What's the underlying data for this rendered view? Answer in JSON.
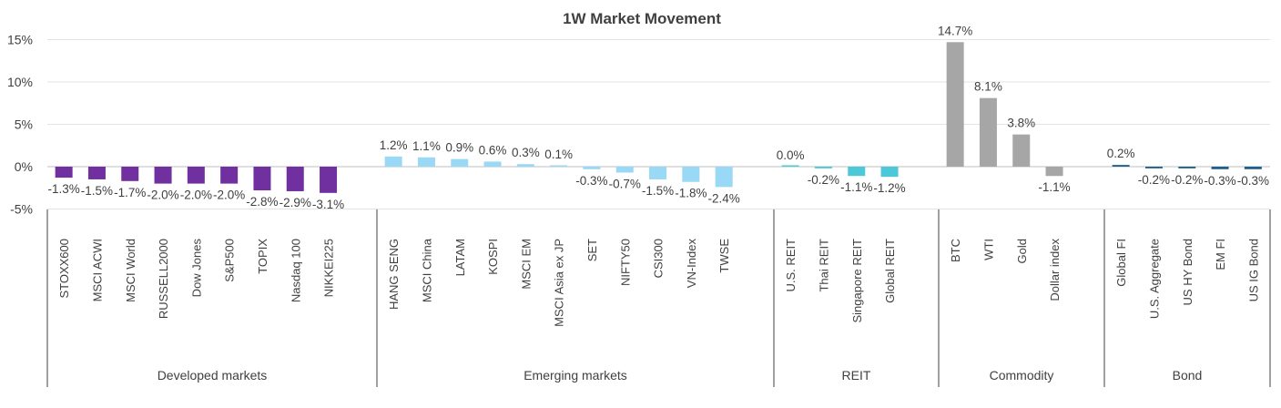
{
  "chart_data": {
    "type": "bar",
    "title": "1W Market Movement",
    "xlabel": "",
    "ylabel": "",
    "ylim": [
      -5,
      15
    ],
    "yticks": [
      15,
      10,
      5,
      0,
      -5
    ],
    "ytick_labels": [
      "15%",
      "10%",
      "5%",
      "0%",
      "-5%"
    ],
    "grid": true,
    "legend": "none",
    "groups": [
      {
        "name": "Developed  markets",
        "color": "#7030a0",
        "categories": [
          "STOXX600",
          "MSCI ACWI",
          "MSCI World",
          "RUSSELL2000",
          "Dow Jones",
          "S&P500",
          "TOPIX",
          "Nasdaq 100",
          "NIKKEI225"
        ],
        "values": [
          -1.3,
          -1.5,
          -1.7,
          -2.0,
          -2.0,
          -2.0,
          -2.8,
          -2.9,
          -3.1
        ],
        "labels": [
          "-1.3%",
          "-1.5%",
          "-1.7%",
          "-2.0%",
          "-2.0%",
          "-2.0%",
          "-2.8%",
          "-2.9%",
          "-3.1%"
        ]
      },
      {
        "name": "Emerging markets",
        "color": "#99d9f5",
        "categories": [
          "HANG SENG",
          "MSCI China",
          "LATAM",
          "KOSPI",
          "MSCI EM",
          "MSCI Asia ex JP",
          "SET",
          "NIFTY50",
          "CSI300",
          "VN-Index",
          "TWSE"
        ],
        "values": [
          1.2,
          1.1,
          0.9,
          0.6,
          0.3,
          0.1,
          -0.3,
          -0.7,
          -1.5,
          -1.8,
          -2.4
        ],
        "labels": [
          "1.2%",
          "1.1%",
          "0.9%",
          "0.6%",
          "0.3%",
          "0.1%",
          "-0.3%",
          "-0.7%",
          "-1.5%",
          "-1.8%",
          "-2.4%"
        ]
      },
      {
        "name": "REIT",
        "color": "#4dc8d8",
        "categories": [
          "U.S. REIT",
          "Thai REIT",
          "Singapore REIT",
          "Global REIT"
        ],
        "values": [
          0.0,
          -0.2,
          -1.1,
          -1.2
        ],
        "labels": [
          "0.0%",
          "-0.2%",
          "-1.1%",
          "-1.2%"
        ]
      },
      {
        "name": "Commodity",
        "color": "#a6a6a6",
        "categories": [
          "BTC",
          "WTI",
          "Gold",
          "Dollar index"
        ],
        "values": [
          14.7,
          8.1,
          3.8,
          -1.1
        ],
        "labels": [
          "14.7%",
          "8.1%",
          "3.8%",
          "-1.1%"
        ]
      },
      {
        "name": "Bond",
        "color": "#1f5f8b",
        "categories": [
          "Global FI",
          "U.S. Aggregate",
          "US HY Bond",
          "EM FI",
          "US IG Bond"
        ],
        "values": [
          0.2,
          -0.2,
          -0.2,
          -0.3,
          -0.3
        ],
        "labels": [
          "0.2%",
          "-0.2%",
          "-0.2%",
          "-0.3%",
          "-0.3%"
        ]
      }
    ]
  }
}
